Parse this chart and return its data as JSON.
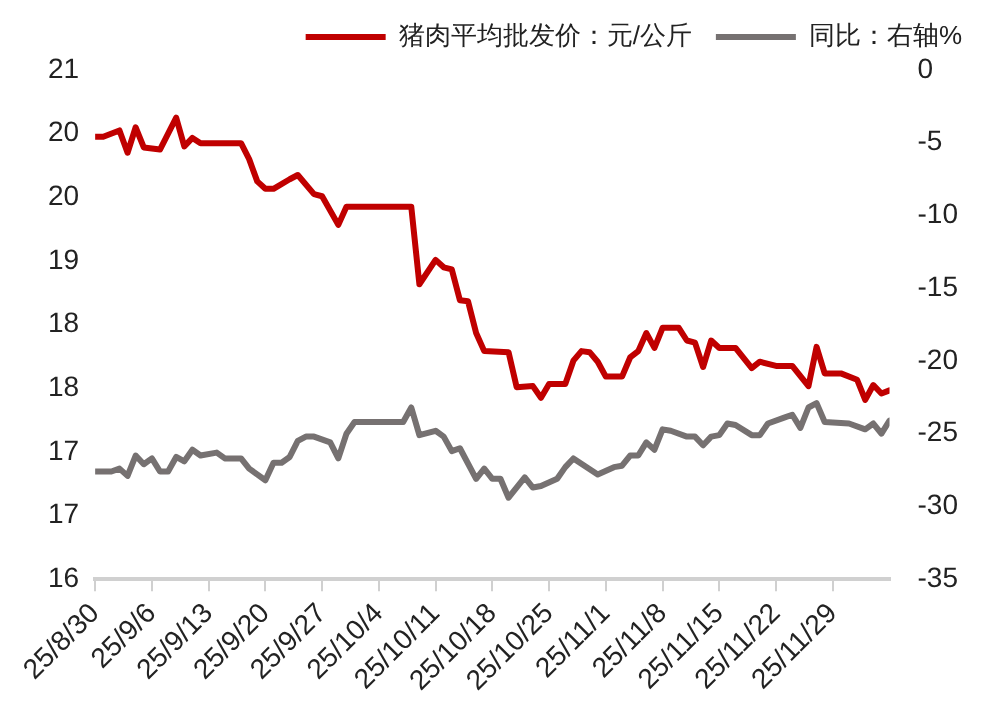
{
  "chart_data": {
    "type": "line",
    "legend": "top",
    "grid": false,
    "marker": "none",
    "line_style": "solid",
    "xlim": [
      "--08-30",
      "--12-06"
    ],
    "xticks": [
      {
        "value": "--08-30",
        "label": "25/8/30"
      },
      {
        "value": "--09-06",
        "label": "25/9/6"
      },
      {
        "value": "--09-13",
        "label": "25/9/13"
      },
      {
        "value": "--09-20",
        "label": "25/9/20"
      },
      {
        "value": "--09-27",
        "label": "25/9/27"
      },
      {
        "value": "--10-04",
        "label": "25/10/4"
      },
      {
        "value": "--10-11",
        "label": "25/10/11"
      },
      {
        "value": "--10-18",
        "label": "25/10/18"
      },
      {
        "value": "--10-25",
        "label": "25/10/25"
      },
      {
        "value": "--11-01",
        "label": "25/11/1"
      },
      {
        "value": "--11-08",
        "label": "25/11/8"
      },
      {
        "value": "--11-15",
        "label": "25/11/15"
      },
      {
        "value": "--11-22",
        "label": "25/11/22"
      },
      {
        "value": "--11-29",
        "label": "25/11/29"
      }
    ],
    "ylim": [
      16,
      20.8
    ],
    "yticks": [
      {
        "value": 16,
        "label": "16"
      },
      {
        "value": 16.6,
        "label": "17"
      },
      {
        "value": 17.2,
        "label": "17"
      },
      {
        "value": 17.8,
        "label": "18"
      },
      {
        "value": 18.4,
        "label": "18"
      },
      {
        "value": 19,
        "label": "19"
      },
      {
        "value": 19.6,
        "label": "20"
      },
      {
        "value": 20.2,
        "label": "20"
      },
      {
        "value": 20.8,
        "label": "21"
      }
    ],
    "y2lim": [
      -35,
      0
    ],
    "y2ticks": [
      -35,
      -30,
      -25,
      -20,
      -15,
      -10,
      -5,
      0
    ],
    "series": [
      {
        "name": "猪肉平均批发价：元/公斤",
        "color": "#c00000",
        "x": [
          "--08-30",
          "--08-31",
          "--09-02",
          "--09-03",
          "--09-04",
          "--09-05",
          "--09-07",
          "--09-09",
          "--09-10",
          "--09-11",
          "--09-12",
          "--09-17",
          "--09-18",
          "--09-19",
          "--09-20",
          "--09-21",
          "--09-23",
          "--09-24",
          "--09-26",
          "--09-27",
          "--09-29",
          "--09-30",
          "--10-08",
          "--10-09",
          "--10-11",
          "--10-12",
          "--10-13",
          "--10-14",
          "--10-15",
          "--10-16",
          "--10-17",
          "--10-20",
          "--10-21",
          "--10-23",
          "--10-24",
          "--10-25",
          "--10-27",
          "--10-28",
          "--10-29",
          "--10-30",
          "--10-31",
          "--11-01",
          "--11-03",
          "--11-04",
          "--11-05",
          "--11-06",
          "--11-07",
          "--11-08",
          "--11-10",
          "--11-11",
          "--11-12",
          "--11-13",
          "--11-14",
          "--11-15",
          "--11-17",
          "--11-19",
          "--11-20",
          "--11-22",
          "--11-24",
          "--11-26",
          "--11-27",
          "--11-28",
          "--11-30",
          "--12-02",
          "--12-03",
          "--12-04",
          "--12-05",
          "--12-06"
        ],
        "values": [
          20.17,
          20.17,
          20.23,
          20.02,
          20.26,
          20.07,
          20.05,
          20.35,
          20.08,
          20.16,
          20.11,
          20.11,
          19.96,
          19.75,
          19.68,
          19.68,
          19.77,
          19.81,
          19.63,
          19.61,
          19.34,
          19.51,
          19.51,
          18.78,
          19.01,
          18.94,
          18.92,
          18.63,
          18.62,
          18.32,
          18.15,
          18.14,
          17.81,
          17.82,
          17.71,
          17.84,
          17.84,
          18.06,
          18.15,
          18.14,
          18.05,
          17.91,
          17.91,
          18.09,
          18.15,
          18.32,
          18.18,
          18.37,
          18.37,
          18.25,
          18.23,
          18.0,
          18.25,
          18.18,
          18.18,
          17.99,
          18.05,
          18.01,
          18.01,
          17.82,
          18.19,
          17.94,
          17.94,
          17.88,
          17.69,
          17.83,
          17.75,
          17.78
        ]
      },
      {
        "name": "同比：右轴%",
        "color": "#767171",
        "axis": "y2",
        "x": [
          "--08-30",
          "--09-01",
          "--09-02",
          "--09-03",
          "--09-04",
          "--09-05",
          "--09-06",
          "--09-07",
          "--09-08",
          "--09-09",
          "--09-10",
          "--09-11",
          "--09-12",
          "--09-14",
          "--09-15",
          "--09-17",
          "--09-18",
          "--09-20",
          "--09-21",
          "--09-22",
          "--09-23",
          "--09-24",
          "--09-25",
          "--09-26",
          "--09-28",
          "--09-29",
          "--09-30",
          "--10-01",
          "--10-07",
          "--10-08",
          "--10-09",
          "--10-11",
          "--10-12",
          "--10-13",
          "--10-14",
          "--10-16",
          "--10-17",
          "--10-18",
          "--10-19",
          "--10-20",
          "--10-22",
          "--10-23",
          "--10-24",
          "--10-26",
          "--10-27",
          "--10-28",
          "--10-31",
          "--11-02",
          "--11-03",
          "--11-04",
          "--11-05",
          "--11-06",
          "--11-07",
          "--11-08",
          "--11-09",
          "--11-11",
          "--11-12",
          "--11-13",
          "--11-14",
          "--11-15",
          "--11-16",
          "--11-17",
          "--11-19",
          "--11-20",
          "--11-21",
          "--11-23",
          "--11-24",
          "--11-25",
          "--11-26",
          "--11-27",
          "--11-28",
          "--12-01",
          "--12-03",
          "--12-04",
          "--12-05",
          "--12-06"
        ],
        "values": [
          -27.6,
          -27.6,
          -27.4,
          -27.9,
          -26.5,
          -27.1,
          -26.7,
          -27.6,
          -27.6,
          -26.6,
          -26.9,
          -26.1,
          -26.5,
          -26.3,
          -26.7,
          -26.7,
          -27.4,
          -28.2,
          -27.0,
          -27.0,
          -26.6,
          -25.5,
          -25.2,
          -25.2,
          -25.6,
          -26.7,
          -25.0,
          -24.2,
          -24.2,
          -23.2,
          -25.1,
          -24.8,
          -25.2,
          -26.2,
          -26.0,
          -28.1,
          -27.4,
          -28.1,
          -28.1,
          -29.4,
          -28.0,
          -28.7,
          -28.6,
          -28.1,
          -27.3,
          -26.7,
          -27.8,
          -27.3,
          -27.2,
          -26.5,
          -26.5,
          -25.6,
          -26.1,
          -24.7,
          -24.8,
          -25.2,
          -25.2,
          -25.8,
          -25.2,
          -25.1,
          -24.3,
          -24.4,
          -25.1,
          -25.1,
          -24.3,
          -23.9,
          -23.7,
          -24.6,
          -23.2,
          -22.9,
          -24.2,
          -24.3,
          -24.7,
          -24.3,
          -25.0,
          -24.1
        ]
      }
    ]
  }
}
